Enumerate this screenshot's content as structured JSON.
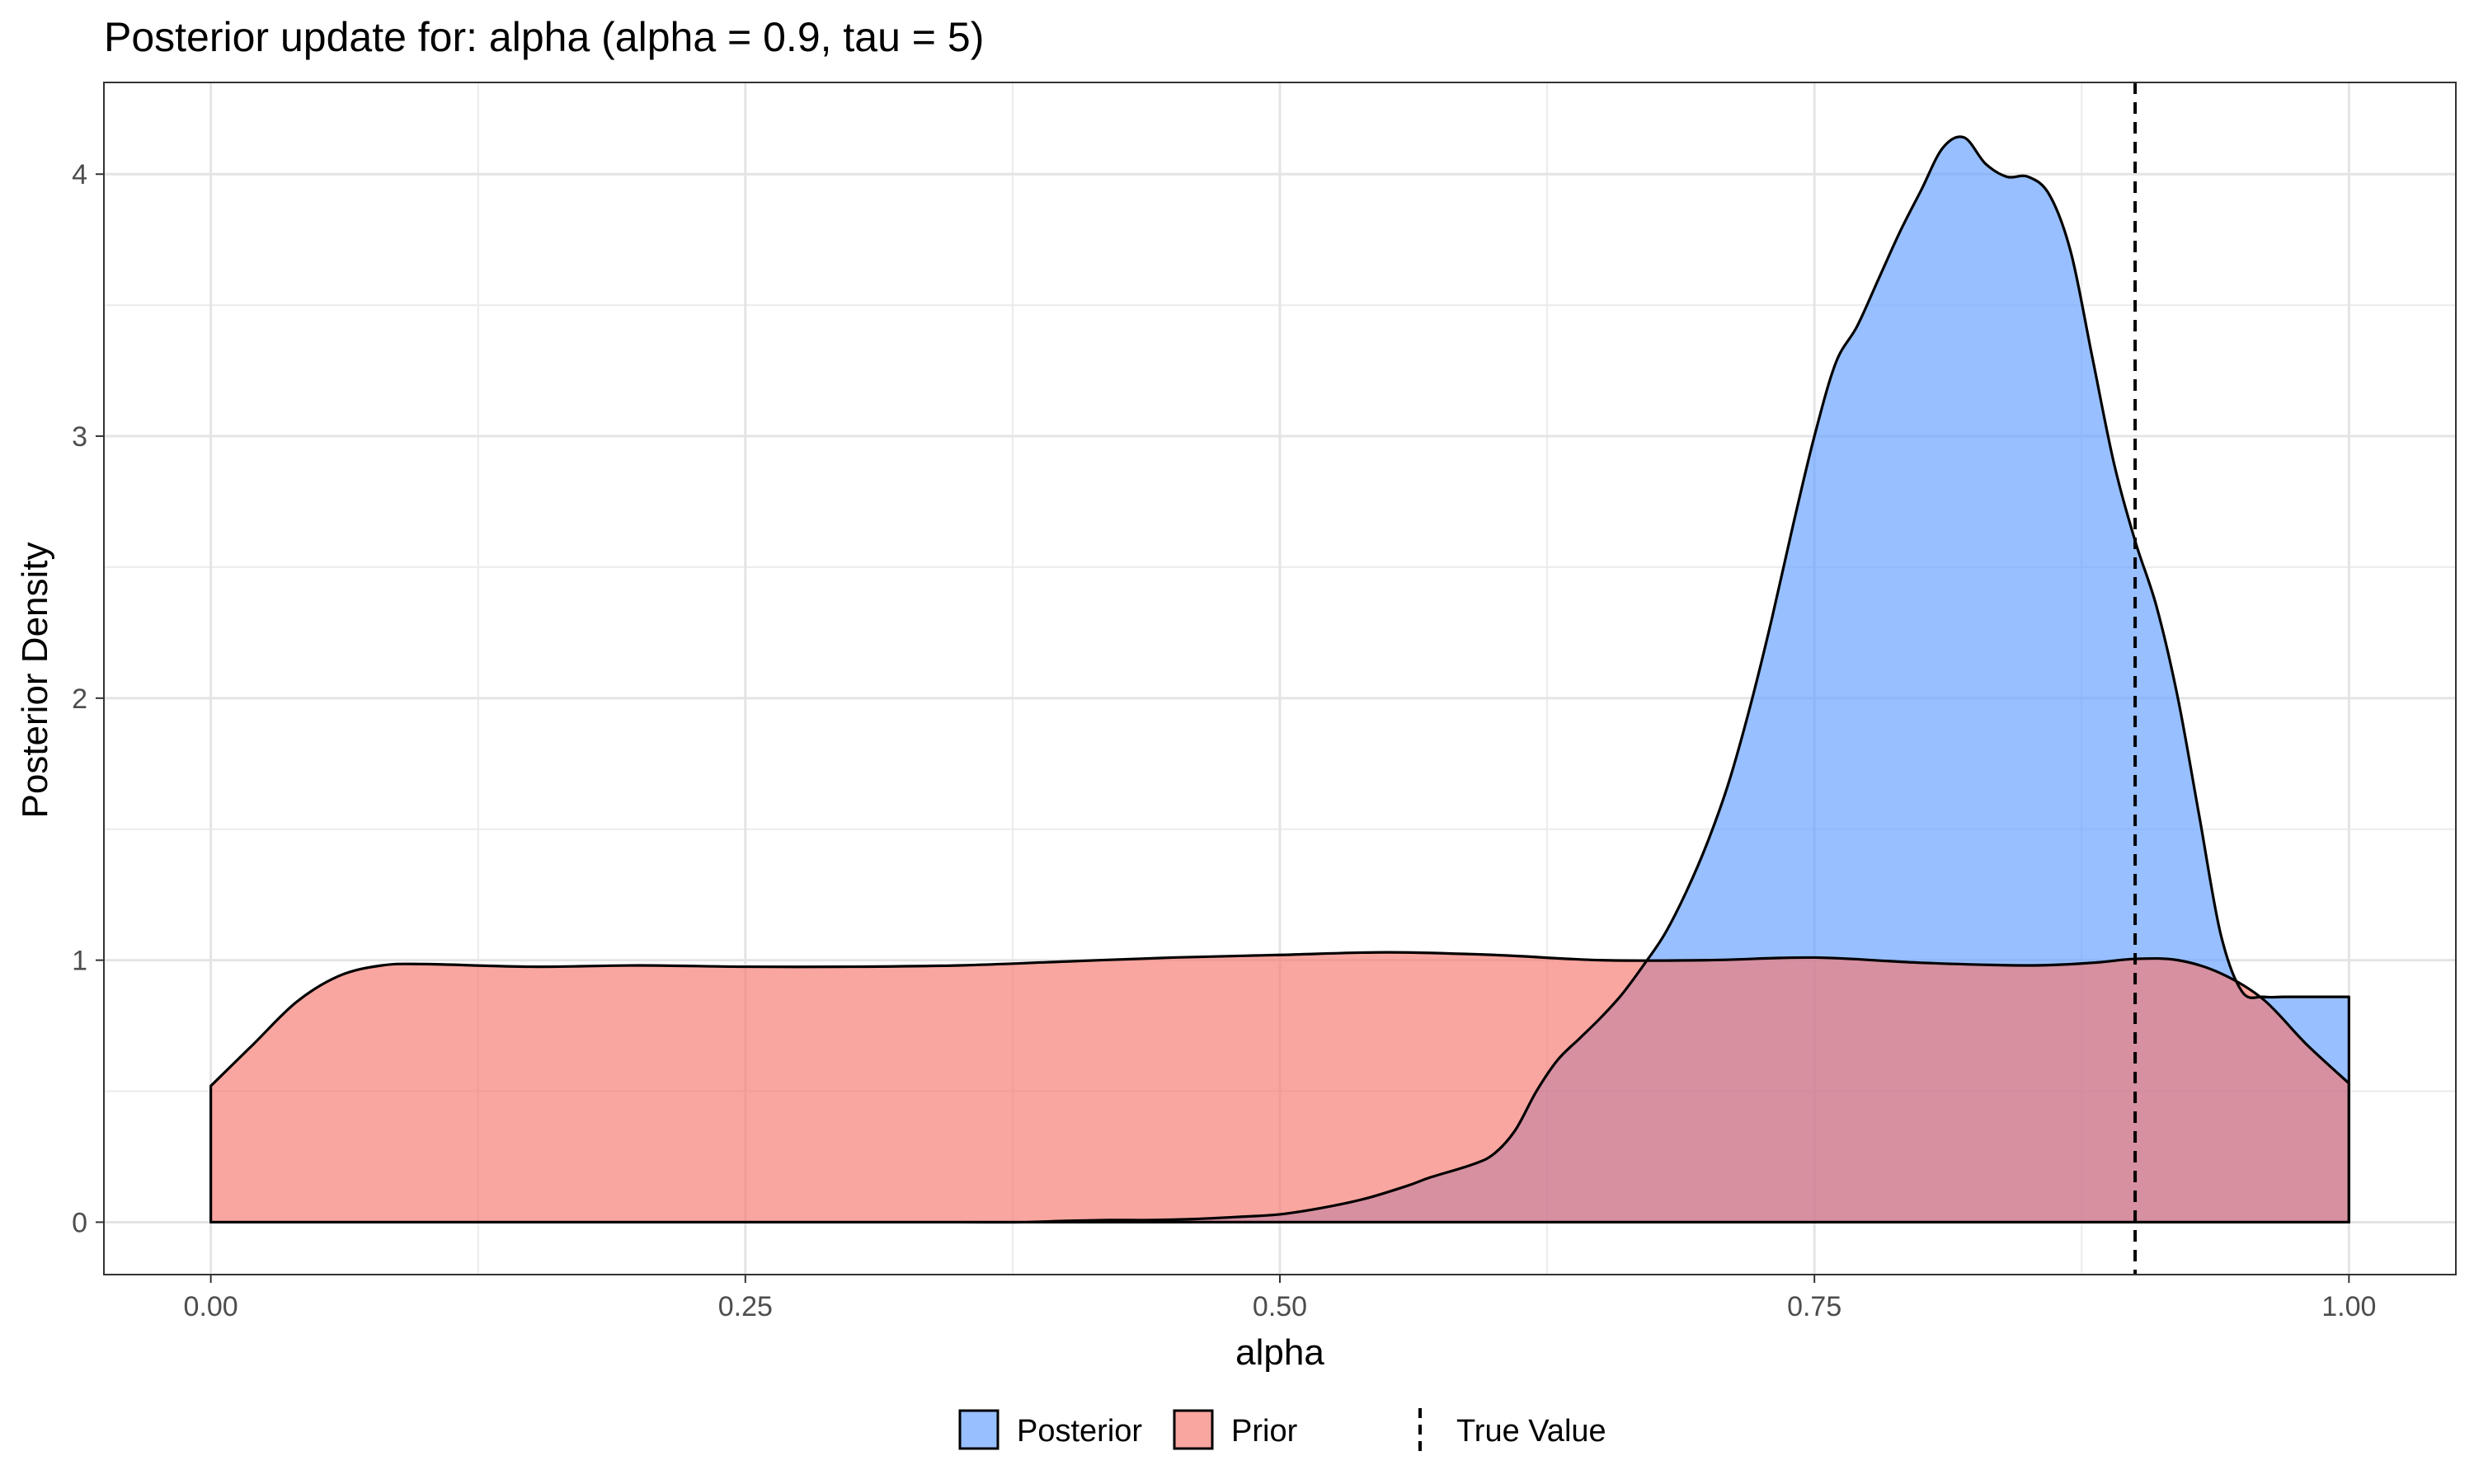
{
  "chart_data": {
    "type": "area",
    "title": "Posterior update for: alpha (alpha = 0.9, tau = 5)",
    "xlabel": "alpha",
    "ylabel": "Posterior Density",
    "xlim": [
      -0.05,
      1.05
    ],
    "ylim": [
      -0.2,
      4.35
    ],
    "x_ticks": [
      0.0,
      0.25,
      0.5,
      0.75,
      1.0
    ],
    "x_tick_labels": [
      "0.00",
      "0.25",
      "0.50",
      "0.75",
      "1.00"
    ],
    "y_ticks": [
      0,
      1,
      2,
      3,
      4
    ],
    "y_tick_labels": [
      "0",
      "1",
      "2",
      "3",
      "4"
    ],
    "grid": true,
    "legend_position": "bottom",
    "true_value": 0.9,
    "true_value_label": "True Value",
    "series": [
      {
        "name": "Posterior",
        "color": "#619CFF",
        "x": [
          0.0,
          0.05,
          0.1,
          0.2,
          0.3,
          0.35,
          0.38,
          0.4,
          0.42,
          0.44,
          0.46,
          0.48,
          0.5,
          0.52,
          0.54,
          0.56,
          0.57,
          0.59,
          0.6,
          0.61,
          0.62,
          0.63,
          0.64,
          0.65,
          0.66,
          0.67,
          0.68,
          0.69,
          0.7,
          0.71,
          0.72,
          0.73,
          0.74,
          0.75,
          0.76,
          0.77,
          0.78,
          0.79,
          0.8,
          0.81,
          0.82,
          0.83,
          0.84,
          0.85,
          0.86,
          0.87,
          0.88,
          0.89,
          0.9,
          0.91,
          0.92,
          0.93,
          0.94,
          0.95,
          0.96,
          0.97,
          0.98,
          0.99,
          1.0
        ],
        "y": [
          0.0,
          0.0,
          0.0,
          0.0,
          0.0,
          0.0,
          0.0,
          0.005,
          0.008,
          0.008,
          0.012,
          0.02,
          0.03,
          0.055,
          0.09,
          0.14,
          0.17,
          0.22,
          0.26,
          0.35,
          0.5,
          0.62,
          0.7,
          0.78,
          0.87,
          0.98,
          1.1,
          1.26,
          1.45,
          1.68,
          1.97,
          2.3,
          2.66,
          3.0,
          3.28,
          3.42,
          3.6,
          3.78,
          3.94,
          4.1,
          4.14,
          4.04,
          3.99,
          3.99,
          3.92,
          3.7,
          3.3,
          2.9,
          2.6,
          2.35,
          2.0,
          1.55,
          1.1,
          0.88,
          0.86,
          0.86,
          0.86,
          0.86,
          0.86
        ],
        "values_note": ""
      },
      {
        "name": "Prior",
        "color": "#F8766D",
        "x": [
          0.0,
          0.02,
          0.04,
          0.06,
          0.08,
          0.1,
          0.15,
          0.2,
          0.25,
          0.3,
          0.35,
          0.4,
          0.45,
          0.5,
          0.55,
          0.6,
          0.65,
          0.7,
          0.75,
          0.8,
          0.85,
          0.88,
          0.9,
          0.92,
          0.94,
          0.96,
          0.98,
          1.0
        ],
        "y": [
          0.52,
          0.68,
          0.84,
          0.94,
          0.98,
          0.985,
          0.975,
          0.98,
          0.975,
          0.975,
          0.98,
          0.995,
          1.01,
          1.02,
          1.03,
          1.02,
          1.0,
          1.0,
          1.01,
          0.99,
          0.98,
          0.99,
          1.005,
          1.0,
          0.95,
          0.85,
          0.68,
          0.53
        ]
      }
    ]
  }
}
